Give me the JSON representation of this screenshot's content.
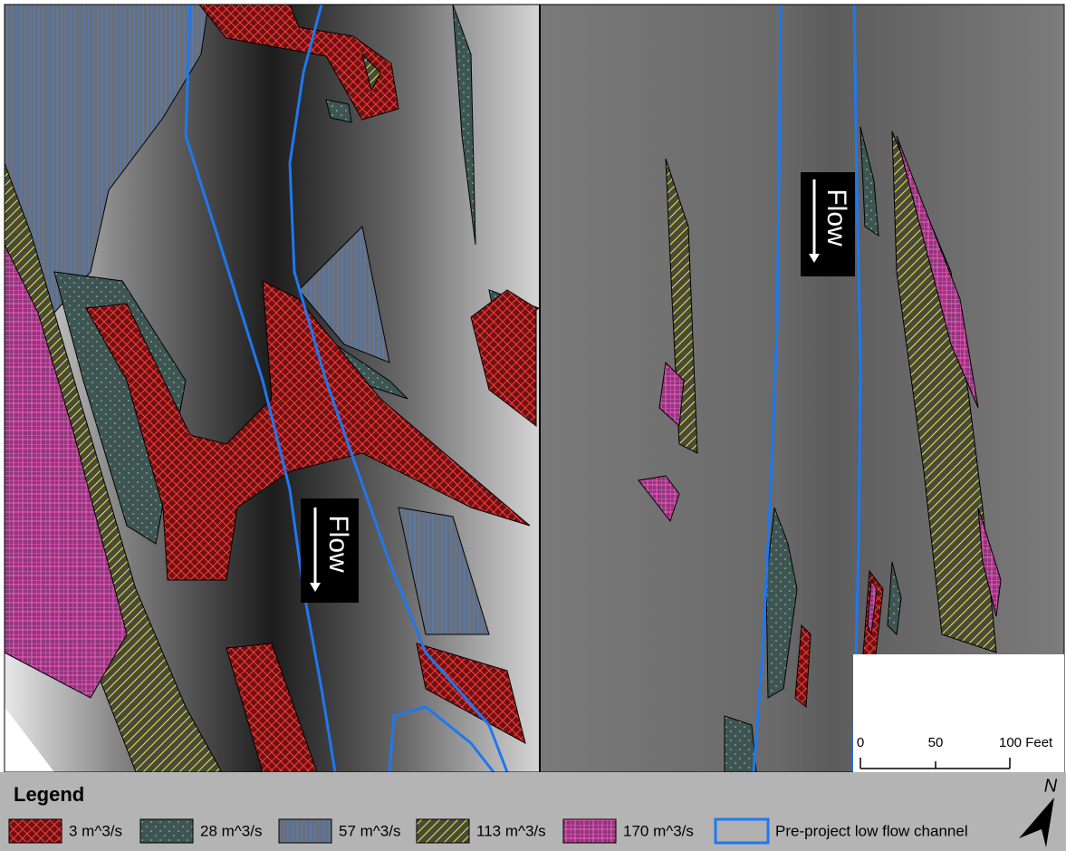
{
  "panels": [
    {
      "flow_label": "Flow"
    },
    {
      "flow_label": "Flow"
    }
  ],
  "scale_bar": {
    "labels": [
      "0",
      "50",
      "100 Feet"
    ]
  },
  "north_arrow": {
    "label": "N"
  },
  "legend": {
    "title": "Legend",
    "items": [
      {
        "label": "3 m^3/s",
        "pattern": "cross",
        "color": "#ff3b3b",
        "fill": "#6e1212"
      },
      {
        "label": "28 m^3/s",
        "pattern": "dots",
        "color": "#9fd8c8",
        "fill": "#3f5552"
      },
      {
        "label": "57 m^3/s",
        "pattern": "lines",
        "color": "#4b7fd1",
        "fill": "#6a6f78"
      },
      {
        "label": "113 m^3/s",
        "pattern": "diag",
        "color": "#e8e84a",
        "fill": "#4a4a3a"
      },
      {
        "label": "170 m^3/s",
        "pattern": "grid",
        "color": "#ff55c8",
        "fill": "#8a3a78"
      },
      {
        "label": "Pre-project low flow channel",
        "pattern": "outline",
        "color": "#1e78f0",
        "fill": "#b0b0b0"
      }
    ]
  }
}
